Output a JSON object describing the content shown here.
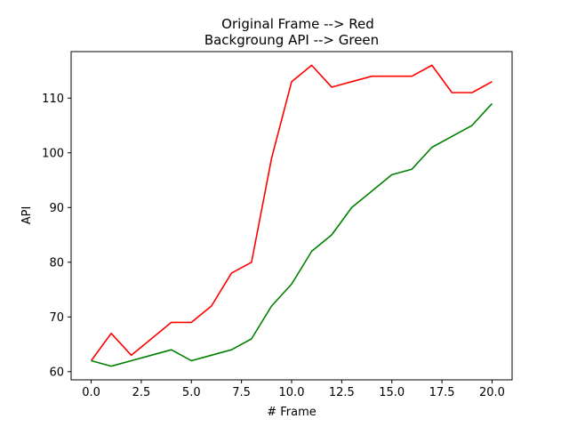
{
  "chart_data": {
    "type": "line",
    "title_lines": [
      "Original Frame --> Red",
      "Backgroung API  -->  Green"
    ],
    "xlabel": "# Frame",
    "ylabel": "API",
    "xlim": [
      -1,
      21
    ],
    "ylim": [
      58.5,
      118.5
    ],
    "xticks": [
      0.0,
      2.5,
      5.0,
      7.5,
      10.0,
      12.5,
      15.0,
      17.5,
      20.0
    ],
    "xtick_labels": [
      "0.0",
      "2.5",
      "5.0",
      "7.5",
      "10.0",
      "12.5",
      "15.0",
      "17.5",
      "20.0"
    ],
    "yticks": [
      60,
      70,
      80,
      90,
      100,
      110
    ],
    "ytick_labels": [
      "60",
      "70",
      "80",
      "90",
      "100",
      "110"
    ],
    "grid": false,
    "x": [
      0,
      1,
      2,
      3,
      4,
      5,
      6,
      7,
      8,
      9,
      10,
      11,
      12,
      13,
      14,
      15,
      16,
      17,
      18,
      19,
      20
    ],
    "series": [
      {
        "color": "#ff0000",
        "values": [
          62,
          67,
          63,
          66,
          69,
          69,
          72,
          78,
          80,
          99,
          113,
          116,
          112,
          113,
          114,
          114,
          114,
          116,
          111,
          111,
          113
        ]
      },
      {
        "color": "#008000",
        "values": [
          62,
          61,
          62,
          63,
          64,
          62,
          63,
          64,
          66,
          72,
          76,
          82,
          85,
          90,
          93,
          96,
          97,
          101,
          103,
          105,
          109
        ]
      }
    ]
  }
}
